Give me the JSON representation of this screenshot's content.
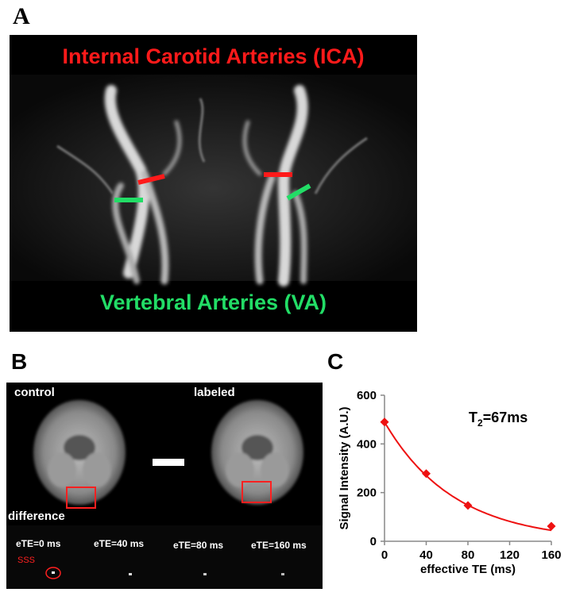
{
  "panel_a": {
    "letter": "A",
    "title_top": "Internal Carotid Arteries (ICA)",
    "title_bottom": "Vertebral Arteries (VA)",
    "colors": {
      "ica": "#ff1a1a",
      "va": "#22dd66"
    }
  },
  "panel_b": {
    "letter": "B",
    "control_label": "control",
    "labeled_label": "labeled",
    "difference_label": "difference",
    "ete_labels": [
      "eTE=0 ms",
      "eTE=40 ms",
      "eTE=80 ms",
      "eTE=160 ms"
    ],
    "sss_label": "SSS"
  },
  "panel_c": {
    "letter": "C",
    "annotation_t": "T",
    "annotation_sub": "2",
    "annotation_rest": "=67ms"
  },
  "chart_data": {
    "type": "scatter",
    "title": "",
    "xlabel": "effective TE (ms)",
    "ylabel": "Signal Intensity (A.U.)",
    "xlim": [
      0,
      160
    ],
    "ylim": [
      0,
      600
    ],
    "xticks": [
      0,
      40,
      80,
      120,
      160
    ],
    "yticks": [
      0,
      200,
      400,
      600
    ],
    "grid": false,
    "series": [
      {
        "x": [
          0,
          40,
          80,
          160
        ],
        "y": [
          490,
          278,
          147,
          62
        ],
        "marker": "diamond",
        "color": "#ee1111"
      }
    ],
    "fit": {
      "kind": "exponential",
      "a": 490,
      "t2": 67,
      "color": "#ee1111"
    }
  }
}
